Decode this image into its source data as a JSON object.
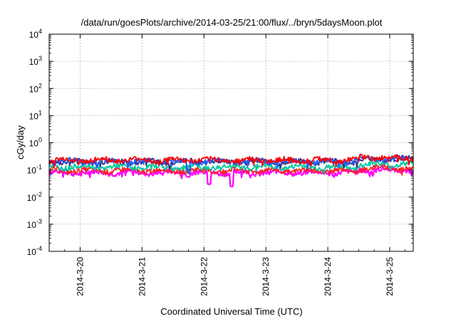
{
  "chart_data": {
    "type": "line",
    "title": "/data/run/goesPlots/archive/2014-03-25/21:00/flux/../bryn/5daysMoon.plot",
    "xlabel": "Coordinated Universal Time (UTC)",
    "ylabel": "cGy/day",
    "y_scale": "log",
    "ylim_exponents": [
      -4,
      4
    ],
    "y_tick_labels": [
      {
        "exp": "4",
        "base": "10"
      },
      {
        "exp": "3",
        "base": "10"
      },
      {
        "exp": "2",
        "base": "10"
      },
      {
        "exp": "1",
        "base": "10"
      },
      {
        "exp": "0",
        "base": "10"
      },
      {
        "exp": "-1",
        "base": "10"
      },
      {
        "exp": "-2",
        "base": "10"
      },
      {
        "exp": "-3",
        "base": "10"
      },
      {
        "exp": "-4",
        "base": "10"
      }
    ],
    "x_tick_labels": [
      "2014-3-20",
      "2014-3-21",
      "2014-3-22",
      "2014-3-23",
      "2014-3-24",
      "2014-3-25"
    ],
    "xlim_days": [
      0,
      5.88
    ],
    "grid": true,
    "series": [
      {
        "color": "#ff00ff",
        "base": 0.08,
        "dips": [
          [
            2.25,
            0.055
          ],
          [
            2.58,
            0.03
          ],
          [
            2.95,
            0.025
          ]
        ]
      },
      {
        "color": "#ff2020",
        "base": 0.095,
        "dips": []
      },
      {
        "color": "#00c8a0",
        "base": 0.13,
        "dips": []
      },
      {
        "color": "#303090",
        "base": 0.2,
        "dips": [
          [
            2.25,
            0.1
          ]
        ]
      },
      {
        "color": "#2060ff",
        "base": 0.21,
        "dips": [
          [
            2.25,
            0.1
          ]
        ]
      },
      {
        "color": "#ff0000",
        "base": 0.23,
        "dips": []
      }
    ]
  }
}
